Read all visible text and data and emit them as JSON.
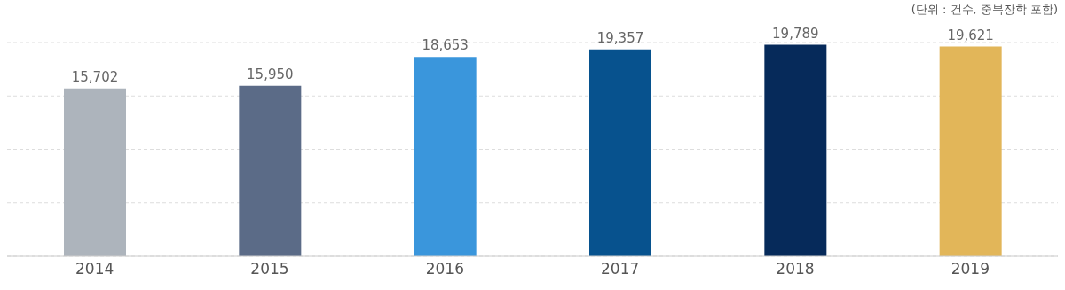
{
  "chart_data": {
    "type": "bar",
    "categories": [
      "2014",
      "2015",
      "2016",
      "2017",
      "2018",
      "2019"
    ],
    "values": [
      15702,
      15950,
      18653,
      19357,
      19789,
      19621
    ],
    "value_labels": [
      "15,702",
      "15,950",
      "18,653",
      "19,357",
      "19,789",
      "19,621"
    ],
    "colors": [
      "#adb4bc",
      "#5b6b87",
      "#3a96dc",
      "#07528e",
      "#062a5a",
      "#e2b659"
    ],
    "tick_labels": "x",
    "grid": "y",
    "annotations": [
      "(단위 : 건수, 중복장학 포함)"
    ]
  }
}
